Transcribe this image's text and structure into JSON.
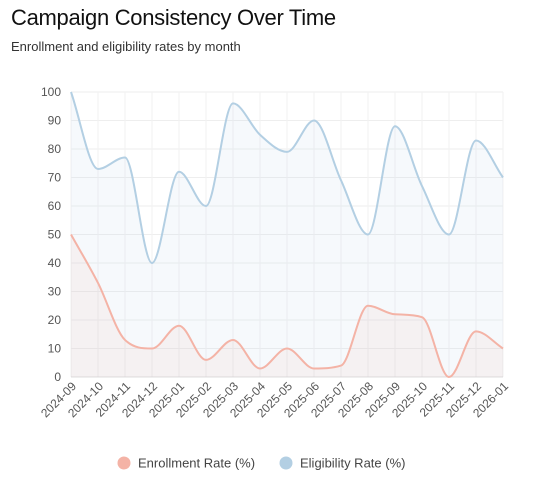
{
  "chart_data": {
    "type": "line",
    "title": "Campaign Consistency Over Time",
    "subtitle": "Enrollment and eligibility rates by month",
    "x": [
      "2024-09",
      "2024-10",
      "2024-11",
      "2024-12",
      "2025-01",
      "2025-02",
      "2025-03",
      "2025-04",
      "2025-05",
      "2025-06",
      "2025-07",
      "2025-08",
      "2025-09",
      "2025-10",
      "2025-11",
      "2025-12",
      "2026-01"
    ],
    "series": [
      {
        "name": "Enrollment Rate (%)",
        "color": "#f4b3a6",
        "values": [
          50,
          33,
          13,
          10,
          18,
          6,
          13,
          3,
          10,
          3,
          4,
          25,
          22,
          21,
          0,
          16,
          10
        ]
      },
      {
        "name": "Eligibility Rate (%)",
        "color": "#b3cfe3",
        "values": [
          100,
          73,
          77,
          40,
          72,
          60,
          96,
          85,
          79,
          90,
          69,
          50,
          88,
          67,
          50,
          83,
          70
        ]
      }
    ],
    "ylim": [
      0,
      100
    ],
    "yticks": [
      0,
      10,
      20,
      30,
      40,
      50,
      60,
      70,
      80,
      90,
      100
    ],
    "grid": true,
    "legend": "bottom"
  }
}
